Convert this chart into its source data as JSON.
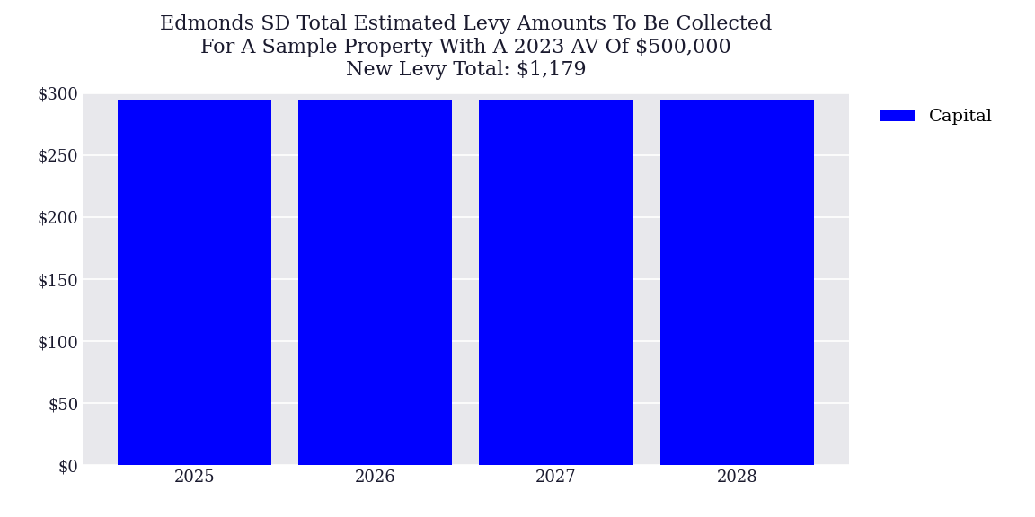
{
  "title_line1": "Edmonds SD Total Estimated Levy Amounts To Be Collected",
  "title_line2": "For A Sample Property With A 2023 AV Of $500,000",
  "title_line3": "New Levy Total: $1,179",
  "categories": [
    2025,
    2026,
    2027,
    2028
  ],
  "capital_values": [
    295,
    295,
    295,
    295
  ],
  "bar_color": "#0000FF",
  "legend_label": "Capital",
  "ylim": [
    0,
    300
  ],
  "yticks": [
    0,
    50,
    100,
    150,
    200,
    250,
    300
  ],
  "plot_bg_color": "#E8E8EC",
  "fig_bg_color": "#FFFFFF",
  "title_fontsize": 16,
  "tick_fontsize": 13,
  "legend_fontsize": 14,
  "bar_width": 0.85
}
